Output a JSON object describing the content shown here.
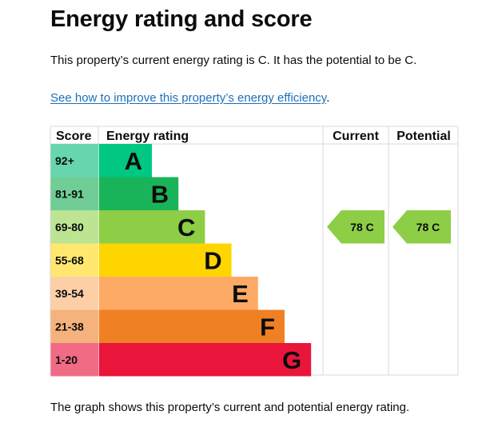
{
  "page": {
    "title": "Energy rating and score",
    "summary": "This property’s current energy rating is C. It has the potential to be C.",
    "improve_link": "See how to improve this property’s energy efficiency",
    "improve_link_suffix": ".",
    "caption": "The graph shows this property’s current and potential energy rating."
  },
  "chart_data": {
    "type": "table",
    "columns": [
      "Score",
      "Energy rating",
      "Current",
      "Potential"
    ],
    "bands": [
      {
        "score": "92+",
        "letter": "A",
        "color": "#00c781",
        "score_color": "#67d6ad"
      },
      {
        "score": "81-91",
        "letter": "B",
        "color": "#19b459",
        "score_color": "#6fcd95"
      },
      {
        "score": "69-80",
        "letter": "C",
        "color": "#8dce46",
        "score_color": "#bce493"
      },
      {
        "score": "55-68",
        "letter": "D",
        "color": "#ffd500",
        "score_color": "#ffe770"
      },
      {
        "score": "39-54",
        "letter": "E",
        "color": "#fcaa65",
        "score_color": "#fdcfa7"
      },
      {
        "score": "21-38",
        "letter": "F",
        "color": "#ef8023",
        "score_color": "#f5b27c"
      },
      {
        "score": "1-20",
        "letter": "G",
        "color": "#e9153b",
        "score_color": "#f16b84"
      }
    ],
    "current": {
      "score": 78,
      "rating": "C",
      "label": "78  C",
      "color": "#8dce46"
    },
    "potential": {
      "score": 78,
      "rating": "C",
      "label": "78  C",
      "color": "#8dce46"
    }
  }
}
